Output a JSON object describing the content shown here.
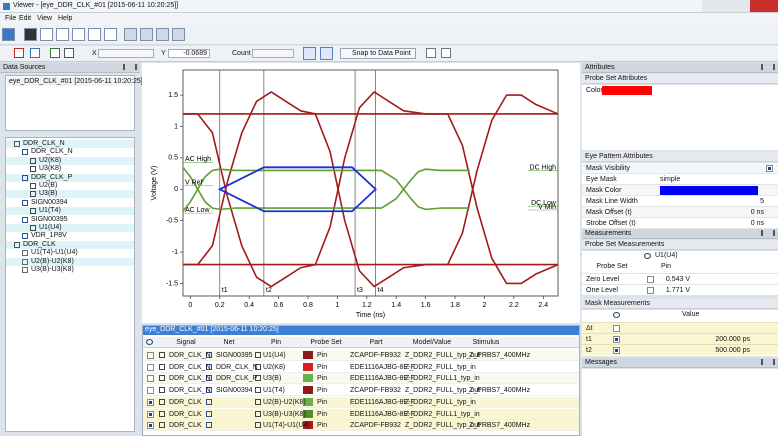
{
  "window": {
    "title": "Viewer - [eye_DDR_CLK_#01 [2015-06-11 10:20:25]]"
  },
  "menu": [
    "File",
    "Edit",
    "View",
    "Help"
  ],
  "toolbar": {
    "x_label": "X",
    "y_label": "Y",
    "y_value": "-0.0689",
    "count_label": "Count",
    "snap": "Snap to Data Point"
  },
  "data_sources": {
    "title": "Data Sources",
    "items": [
      "eye_DDR_CLK_#01 [2015-06-11 10:20:25]"
    ]
  },
  "tree": [
    "DDR_CLK_N",
    "DDR_CLK_N",
    "U2(K8)",
    "U3(K8)",
    "DDR_CLK_P",
    "U2(B)",
    "U3(B)",
    "SIGN00394",
    "U1(T4)",
    "SIGN00395",
    "U1(U4)",
    "VDR_1P8V",
    "DDR_CLK",
    "U1(T4)-U1(U4)",
    "U2(B)-U2(K8)",
    "U3(B)-U3(K8)"
  ],
  "chart_data": {
    "type": "line",
    "x_label": "Time  (ns)",
    "y_label": "Voltage (V)",
    "xlim": [
      -0.05,
      2.5
    ],
    "ylim": [
      -1.7,
      1.9
    ],
    "xticks": [
      0,
      0.2,
      0.4,
      0.6,
      0.8,
      1,
      1.2,
      1.4,
      1.6,
      1.8,
      2,
      2.2,
      2.4
    ],
    "yticks": [
      -1.5,
      -1,
      -0.5,
      0,
      0.5,
      1,
      1.5
    ],
    "series": [
      {
        "color": "#a31a1a",
        "x": [
          -0.05,
          2.5
        ],
        "values": [
          1.2,
          1.2
        ]
      },
      {
        "color": "#a31a1a",
        "x": [
          -0.05,
          2.5
        ],
        "values": [
          -1.2,
          -1.2
        ]
      },
      {
        "color": "#a31a1a",
        "x": [
          -0.05,
          0.05,
          0.15,
          0.25,
          0.35,
          0.45,
          0.55,
          0.65,
          0.75,
          0.85,
          0.95,
          1.05,
          1.15,
          1.25,
          1.35,
          1.45,
          1.6,
          1.75,
          1.85,
          1.95,
          2.05,
          2.15,
          2.25,
          2.35,
          2.5
        ],
        "values": [
          -1.2,
          -1.2,
          -0.9,
          0.1,
          0.9,
          1.4,
          1.55,
          1.4,
          1.25,
          1.2,
          0.6,
          -0.5,
          -1.3,
          -1.55,
          -1.4,
          -1.25,
          -1.2,
          -1.2,
          -0.7,
          0.3,
          1.1,
          1.5,
          1.5,
          1.35,
          1.2
        ]
      },
      {
        "color": "#a31a1a",
        "x": [
          -0.05,
          0.05,
          0.15,
          0.25,
          0.35,
          0.45,
          0.55,
          0.65,
          0.75,
          0.85,
          0.95,
          1.05,
          1.15,
          1.25,
          1.35,
          1.45,
          1.6,
          1.75,
          1.85,
          1.95,
          2.05,
          2.15,
          2.25,
          2.35,
          2.5
        ],
        "values": [
          1.2,
          1.2,
          0.9,
          -0.1,
          -0.9,
          -1.4,
          -1.55,
          -1.4,
          -1.25,
          -1.2,
          -0.6,
          0.5,
          1.3,
          1.55,
          1.4,
          1.25,
          1.2,
          1.2,
          0.7,
          -0.3,
          -1.1,
          -1.5,
          -1.5,
          -1.35,
          -1.2
        ]
      },
      {
        "color": "#5e9e2e",
        "x": [
          -0.05,
          0,
          0.05,
          0.1,
          0.15,
          0.2,
          0.3,
          1.3,
          1.4,
          1.45,
          1.5,
          1.55,
          1.6,
          1.7,
          1.9
        ],
        "values": [
          -0.35,
          -0.2,
          0,
          0.2,
          0.3,
          0.32,
          0.3,
          0.3,
          0.15,
          0,
          -0.15,
          -0.28,
          -0.32,
          -0.3,
          -0.3
        ]
      },
      {
        "color": "#5e9e2e",
        "x": [
          -0.05,
          0,
          0.05,
          0.1,
          0.15,
          0.2,
          0.3,
          1.3,
          1.4,
          1.45,
          1.5,
          1.55,
          1.6,
          1.7,
          1.9
        ],
        "values": [
          0.35,
          0.2,
          0,
          -0.2,
          -0.3,
          -0.32,
          -0.3,
          -0.3,
          -0.15,
          0,
          0.15,
          0.28,
          0.32,
          0.3,
          0.3
        ]
      }
    ],
    "mask": {
      "color": "#1f2fd6",
      "x": [
        0.2,
        0.5,
        1.1,
        1.26,
        1.1,
        0.5
      ],
      "values": [
        0,
        0.35,
        0.35,
        0,
        -0.35,
        -0.35
      ]
    },
    "markers": [
      {
        "label": "t1",
        "x": 0.2
      },
      {
        "label": "t2",
        "x": 0.5
      },
      {
        "label": "t3",
        "x": 1.12
      },
      {
        "label": "t4",
        "x": 1.26
      }
    ],
    "level_color": "#6aa84f",
    "levels_left": [
      {
        "label": "AC High",
        "y": 0.43
      },
      {
        "label": "V Ref",
        "y": 0.06
      },
      {
        "label": "AC Low",
        "y": -0.38
      }
    ],
    "levels_right": [
      {
        "label": "DC High",
        "y": 0.3
      },
      {
        "label": "DC Low",
        "y": -0.27
      },
      {
        "label": "V Min",
        "y": -0.33
      }
    ]
  },
  "table": {
    "title": "eye_DDR_CLK_#01 [2015-06-11 10:20:25]",
    "headers": [
      "Signal",
      "Net",
      "Pin",
      "Probe Set",
      "Part",
      "Model/Value",
      "Stimulus"
    ],
    "rows": [
      {
        "checked": false,
        "color": "#8b1a1a",
        "cells": [
          "DDR_CLK_N",
          "SIGN00395",
          "U1(U4)",
          "Pin",
          "ZCAPDF-FB932",
          "Z_DDR2_FULL_typ_out",
          "Z_PRBS7_400MHz"
        ]
      },
      {
        "checked": false,
        "color": "#d42020",
        "cells": [
          "DDR_CLK_N",
          "DDR_CLK_N",
          "U2(K8)",
          "Pin",
          "EDE1116AJBG-8E-F",
          "Z_DDR2_FULL_typ_in",
          null
        ]
      },
      {
        "checked": false,
        "color": "#6ab04c",
        "cells": [
          "DDR_CLK_N",
          "DDR_CLK_P",
          "U3(B)",
          "Pin",
          "EDE1116AJBG-8E-F",
          "Z_DDR2_FULL1_typ_in",
          null
        ]
      },
      {
        "checked": false,
        "color": "#8b1a1a",
        "cells": [
          "DDR_CLK_N",
          "SIGN00394",
          "U1(T4)",
          "Pin",
          "ZCAPDF-FB932",
          "Z_DDR2_FULL_typ_out",
          "Z_PRBS7_400MHz"
        ]
      },
      {
        "checked": true,
        "color": "#6ab04c",
        "cells": [
          "DDR_CLK",
          null,
          "U2(B)-U2(K8)",
          "Pin",
          "EDE1116AJBG-8E-F",
          "Z_DDR2_FULL_typ_in",
          null
        ]
      },
      {
        "checked": true,
        "color": "#4f8f2f",
        "cells": [
          "DDR_CLK",
          null,
          "U3(B)-U3(K8)",
          "Pin",
          "EDE1116AJBG-8E-F",
          "Z_DDR2_FULL1_typ_in",
          null
        ]
      },
      {
        "checked": true,
        "color": "#b01818",
        "cells": [
          "DDR_CLK",
          null,
          "U1(T4)-U1(U4)",
          "Pin",
          "ZCAPDF-FB932",
          "Z_DDR2_FULL_typ_out",
          "Z_PRBS7_400MHz"
        ]
      }
    ]
  },
  "attributes": {
    "title": "Attributes",
    "probe_set": {
      "title": "Probe Set Attributes",
      "color_label": "Color",
      "color": "#ff0000"
    },
    "eye_pattern": {
      "title": "Eye Pattern Attributes",
      "rows": [
        {
          "label": "Mask Visibility",
          "checked": true
        },
        {
          "label": "Eye Mask",
          "value": "simple"
        },
        {
          "label": "Mask Color",
          "color": "#0000ff"
        },
        {
          "label": "Mask Line Width",
          "value": "5"
        },
        {
          "label": "Mask Offset (t)",
          "value": "0 ns"
        },
        {
          "label": "Strobe Offset (t)",
          "value": "0 ns"
        }
      ]
    }
  },
  "measurements": {
    "title": "Measurements",
    "probe_set": {
      "title": "Probe Set Measurements",
      "probe": "U1(U4)",
      "headers": [
        "Probe Set",
        "Pin"
      ],
      "rows": [
        [
          "Zero Level",
          "0.543 V"
        ],
        [
          "One Level",
          "1.771 V"
        ]
      ]
    },
    "mask": {
      "title": "Mask Measurements",
      "header": "Value",
      "rows": [
        {
          "label": "Δt",
          "checked": false,
          "value": null
        },
        {
          "label": "t1",
          "checked": true,
          "value": "200.000 ps"
        },
        {
          "label": "t2",
          "checked": true,
          "value": "500.000 ps"
        }
      ]
    }
  },
  "messages": {
    "title": "Messages"
  }
}
